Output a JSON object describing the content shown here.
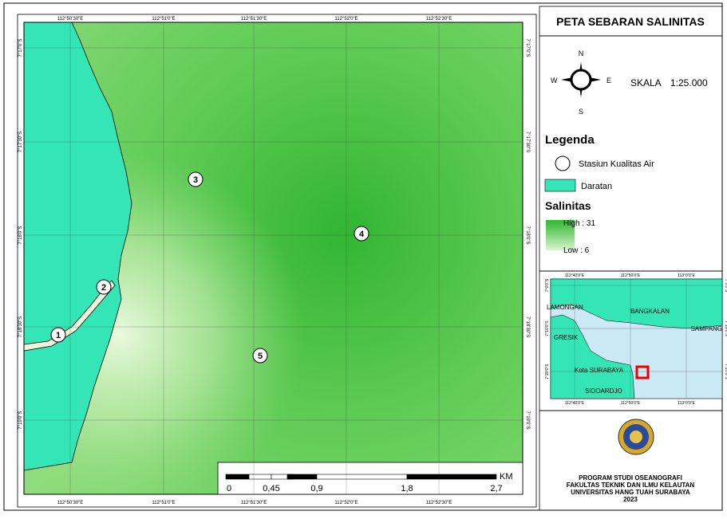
{
  "title": "PETA SEBARAN SALINITAS",
  "map": {
    "top_labels": [
      "112°50'30\"E",
      "112°51'0\"E",
      "112°51'30\"E",
      "112°52'0\"E",
      "112°52'30\"E"
    ],
    "bottom_labels": [
      "112°50'30\"E",
      "112°51'0\"E",
      "112°51'30\"E",
      "112°52'0\"E",
      "112°52'30\"E"
    ],
    "left_labels": [
      "7°17'0\"S",
      "7°17'30\"S",
      "7°18'0\"S",
      "7°18'30\"S",
      "7°19'0\"S"
    ],
    "right_labels": [
      "7°17'0\"S",
      "7°17'30\"S",
      "7°18'0\"S",
      "7°18'30\"S",
      "7°19'0\"S"
    ],
    "stations": [
      "1",
      "2",
      "3",
      "4",
      "5"
    ],
    "scale_bar": {
      "labels": [
        "0",
        "0,45",
        "0,9",
        "1,8",
        "2,7"
      ],
      "unit": "KM"
    }
  },
  "compass": {
    "n": "N",
    "w": "W",
    "e": "E",
    "s": "S"
  },
  "scale": {
    "label": "SKALA",
    "value": "1:25.000"
  },
  "legend": {
    "title": "Legenda",
    "items": [
      "Stasiun Kualitas Air",
      "Daratan"
    ],
    "salinity_title": "Salinitas",
    "high": "High : 31",
    "low": "Low : 6"
  },
  "inset": {
    "top_labels": [
      "112°40'0\"E",
      "112°50'0\"E",
      "113°0'0\"E"
    ],
    "bottom_labels": [
      "112°40'0\"E",
      "112°50'0\"E",
      "113°0'0\"E"
    ],
    "left_labels": [
      "7°0'0\"S",
      "7°10'0\"S",
      "7°20'0\"S"
    ],
    "right_labels": [
      "7°0'0\"S",
      "7°10'0\"S",
      "7°20'0\"S"
    ],
    "places": [
      "LAMONGAN",
      "BANGKALAN",
      "GRESIK",
      "SAMPANG",
      "Kota SURABAYA",
      "SIDOARDJO"
    ]
  },
  "footer": {
    "lines": [
      "PROGRAM STUDI OSEANOGRAFI",
      "FAKULTAS TEKNIK DAN ILMU KELAUTAN",
      "UNIVERSITAS HANG TUAH SURABAYA",
      "2023"
    ]
  }
}
